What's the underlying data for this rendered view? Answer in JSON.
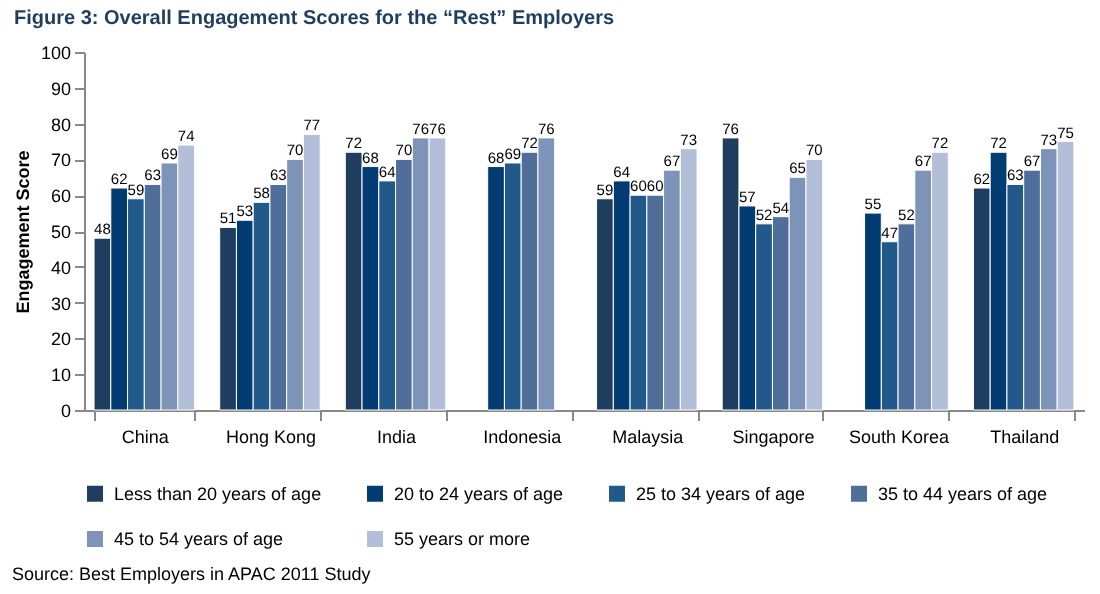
{
  "chart_data": {
    "type": "bar",
    "title": "Figure 3: Overall Engagement Scores for the “Rest” Employers",
    "ylabel": "Engagement Score",
    "categories": [
      "China",
      "Hong Kong",
      "India",
      "Indonesia",
      "Malaysia",
      "Singapore",
      "South Korea",
      "Thailand"
    ],
    "series": [
      {
        "name": "Less than 20 years of age",
        "color": "#1f3d5e",
        "values": [
          48,
          51,
          72,
          null,
          59,
          76,
          null,
          62
        ]
      },
      {
        "name": "20 to 24 years of age",
        "color": "#003c71",
        "values": [
          62,
          53,
          68,
          68,
          64,
          57,
          55,
          72
        ]
      },
      {
        "name": "25 to 34 years of age",
        "color": "#215a8a",
        "values": [
          59,
          58,
          64,
          69,
          60,
          52,
          47,
          63
        ]
      },
      {
        "name": "35 to 44 years of age",
        "color": "#4f6f9a",
        "values": [
          63,
          63,
          70,
          72,
          60,
          54,
          52,
          67
        ]
      },
      {
        "name": "45 to 54 years of age",
        "color": "#7d93b8",
        "values": [
          69,
          70,
          76,
          76,
          67,
          65,
          67,
          73
        ]
      },
      {
        "name": "55 years or more",
        "color": "#b3bfd8",
        "values": [
          74,
          77,
          76,
          null,
          73,
          70,
          72,
          75
        ]
      }
    ],
    "ylim": [
      0,
      100
    ],
    "yticks": [
      0,
      10,
      20,
      30,
      40,
      50,
      60,
      70,
      80,
      90,
      100
    ],
    "grid": false,
    "legend": "bottom",
    "data_labels": true,
    "annotations": [
      "Source: Best Employers in APAC 2011 Study"
    ]
  }
}
